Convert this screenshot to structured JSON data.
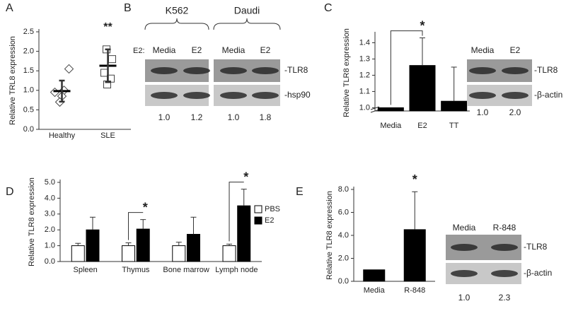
{
  "chart_data": [
    {
      "panel": "A",
      "type": "dot",
      "y_label": "Relative TRL8 expression",
      "categories": [
        "Healthy",
        "SLE"
      ],
      "markers": [
        "diamond",
        "square"
      ],
      "points": [
        [
          1.55,
          1.0,
          0.95,
          0.85,
          0.7
        ],
        [
          2.05,
          1.8,
          1.45,
          1.3,
          1.15
        ]
      ],
      "means": [
        0.98,
        1.63
      ],
      "errors": [
        0.27,
        0.42
      ],
      "ylim": [
        0,
        2.5
      ],
      "yticks": [
        {
          "value": 0,
          "label": "0.0"
        },
        {
          "value": 0.5,
          "label": "0.5"
        },
        {
          "value": 1,
          "label": "1.0"
        },
        {
          "value": 1.5,
          "label": "1.5"
        },
        {
          "value": 2,
          "label": "2.0"
        },
        {
          "value": 2.5,
          "label": "2.5"
        }
      ],
      "annotations": [
        "**"
      ]
    },
    {
      "panel": "C",
      "type": "bar",
      "y_label": "Relative TLR8 expression",
      "categories": [
        "Media",
        "E2",
        "TT"
      ],
      "values": [
        1.0,
        1.26,
        1.04
      ],
      "errors": [
        null,
        0.17,
        0.21
      ],
      "color": "#000000",
      "ylim": [
        0.98,
        1.45
      ],
      "yticks": [
        {
          "value": 1,
          "label": "1.0"
        },
        {
          "value": 1.1,
          "label": "1.1"
        },
        {
          "value": 1.2,
          "label": "1.2"
        },
        {
          "value": 1.3,
          "label": "1.3"
        },
        {
          "value": 1.4,
          "label": "1.4"
        }
      ],
      "axis_break": true,
      "annotations": [
        "*"
      ]
    },
    {
      "panel": "D",
      "type": "bar",
      "y_label": "Relative TLR8 expression",
      "categories": [
        "Spleen",
        "Thymus",
        "Bone marrow",
        "Lymph node"
      ],
      "series": [
        {
          "name": "PBS",
          "color": "#ffffff",
          "values": [
            1.0,
            1.0,
            1.0,
            1.0
          ],
          "errors": [
            0.15,
            0.18,
            0.22,
            0.1
          ]
        },
        {
          "name": "E2",
          "color": "#000000",
          "values": [
            2.0,
            2.05,
            1.72,
            3.52
          ],
          "errors": [
            0.8,
            0.6,
            1.08,
            1.05
          ]
        }
      ],
      "ylim": [
        0,
        5
      ],
      "yticks": [
        {
          "value": 0,
          "label": "0.0"
        },
        {
          "value": 1,
          "label": "1.0"
        },
        {
          "value": 2,
          "label": "2.0"
        },
        {
          "value": 3,
          "label": "3.0"
        },
        {
          "value": 4,
          "label": "4.0"
        },
        {
          "value": 5,
          "label": "5.0"
        }
      ],
      "annotations": [
        "*",
        "*"
      ]
    },
    {
      "panel": "E",
      "type": "bar",
      "y_label": "Relative TLR8 expression",
      "categories": [
        "Media",
        "R-848"
      ],
      "values": [
        1.0,
        4.5
      ],
      "errors": [
        null,
        3.3
      ],
      "color": "#000000",
      "ylim": [
        0,
        8
      ],
      "yticks": [
        {
          "value": 0,
          "label": "0.0"
        },
        {
          "value": 2,
          "label": "2.0"
        },
        {
          "value": 4,
          "label": "4.0"
        },
        {
          "value": 6,
          "label": "6.0"
        },
        {
          "value": 8,
          "label": "8.0"
        }
      ],
      "annotations": [
        "*"
      ]
    }
  ],
  "blots": [
    {
      "panel": "B",
      "groups": [
        "K562",
        "Daudi"
      ],
      "condition_label": "E2:",
      "lanes": [
        "Media",
        "E2",
        "Media",
        "E2"
      ],
      "bands": [
        "-TLR8",
        "-hsp90"
      ],
      "quantification": [
        "1.0",
        "1.2",
        "1.0",
        "1.8"
      ]
    },
    {
      "lanes": [
        "Media",
        "E2"
      ],
      "bands": [
        "-TLR8",
        "-β-actin"
      ],
      "quantification": [
        "1.0",
        "2.0"
      ]
    },
    {
      "lanes": [
        "Media",
        "R-848"
      ],
      "bands": [
        "-TLR8",
        "-β-actin"
      ],
      "quantification": [
        "1.0",
        "2.3"
      ]
    }
  ]
}
